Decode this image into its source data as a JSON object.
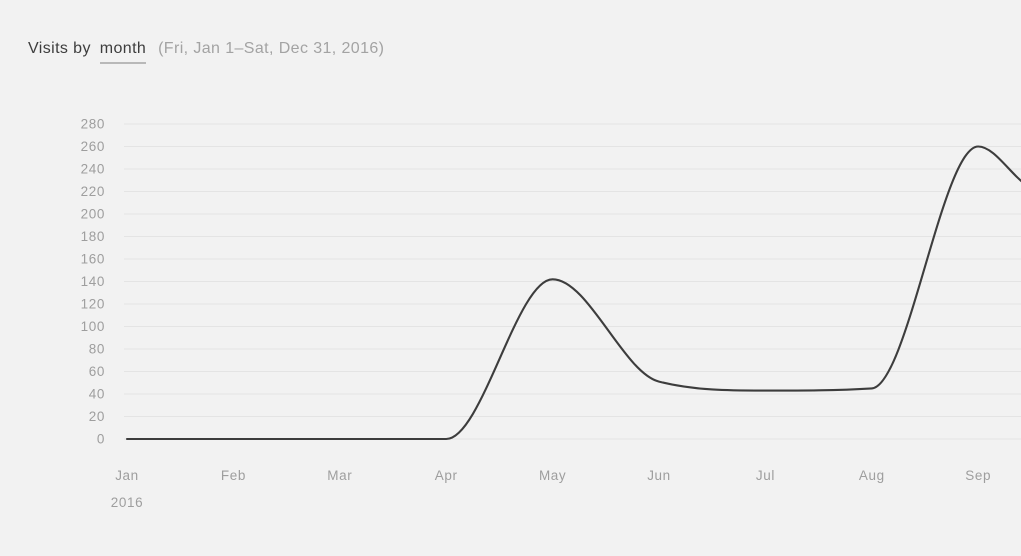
{
  "header": {
    "title_prefix": "Visits by",
    "interval_label": "month",
    "range_label": "(Fri, Jan 1–Sat, Dec 31, 2016)"
  },
  "colors": {
    "background": "#f2f2f2",
    "gridline": "#e4e4e4",
    "line": "#3d3d3d",
    "axis_label": "#9e9e9e",
    "title": "#3d3d3d",
    "subtitle": "#a3a3a3",
    "interval_underline": "#b9b9b9"
  },
  "chart_data": {
    "type": "line",
    "title": "Visits by month",
    "date_range": "Fri, Jan 1–Sat, Dec 31, 2016",
    "categories": [
      "Jan",
      "Feb",
      "Mar",
      "Apr",
      "May",
      "Jun",
      "Jul",
      "Aug",
      "Sep"
    ],
    "year_label": "2016",
    "series": [
      {
        "name": "Visits",
        "values": [
          0,
          0,
          0,
          0,
          142,
          51,
          43,
          45,
          260
        ]
      }
    ],
    "xlabel": "",
    "ylabel": "",
    "ylim": [
      0,
      280
    ],
    "y_tick_step": 20,
    "y_ticks": [
      0,
      20,
      40,
      60,
      80,
      100,
      120,
      140,
      160,
      180,
      200,
      220,
      240,
      260,
      280
    ],
    "grid": true,
    "legend": false,
    "smooth": true,
    "line_clipped_at_right_edge": true,
    "approx_value_at_right_edge": 228
  }
}
